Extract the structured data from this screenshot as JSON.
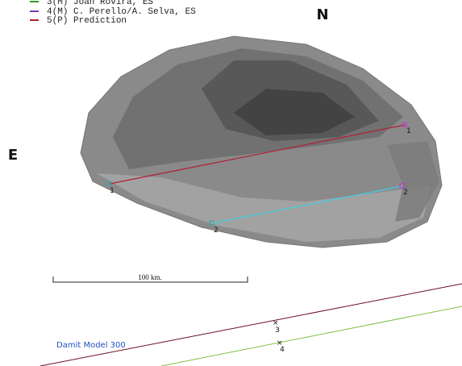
{
  "legend": [
    {
      "label": "3(M) Joan Rovira, ES"
    },
    {
      "label": "4(M) C. Perello/A. Selva, ES"
    },
    {
      "label": "5(P) Prediction"
    }
  ],
  "compass": {
    "north": "N",
    "east": "E"
  },
  "chords": [
    {
      "start_label": "1",
      "end_label": "1"
    },
    {
      "start_label": "2",
      "end_label": "2"
    }
  ],
  "scale_bar": "100 km.",
  "lines": [
    {
      "label": "3"
    },
    {
      "label": "4"
    }
  ],
  "model_label": "Damit Model 300"
}
